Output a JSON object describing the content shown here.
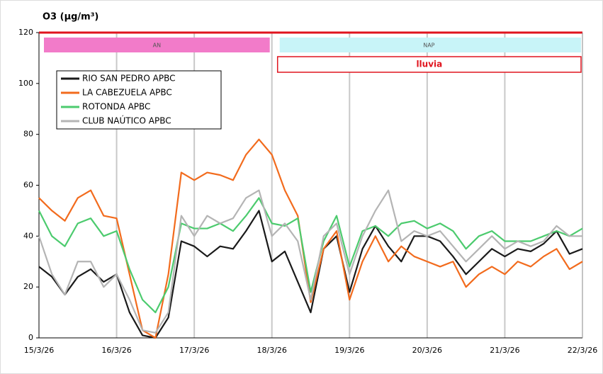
{
  "chart_data": {
    "type": "line",
    "title": "O3 (µg/m³)",
    "categories": [
      "15/3/26",
      null,
      null,
      null,
      null,
      null,
      "16/3/26",
      null,
      null,
      null,
      null,
      null,
      "17/3/26",
      null,
      null,
      null,
      null,
      null,
      "18/3/26",
      null,
      null,
      null,
      null,
      null,
      "19/3/26",
      null,
      null,
      null,
      null,
      null,
      "20/3/26",
      null,
      null,
      null,
      null,
      null,
      "21/3/26",
      null,
      null,
      null,
      null,
      null,
      "22/3/26"
    ],
    "series": [
      {
        "name": "RIO SAN PEDRO APBC",
        "color": "#1a1a1a",
        "values": [
          28,
          24,
          17,
          24,
          27,
          22,
          25,
          10,
          1,
          0,
          8,
          38,
          36,
          32,
          36,
          35,
          42,
          50,
          30,
          34,
          22,
          10,
          35,
          40,
          18,
          35,
          44,
          36,
          30,
          40,
          40,
          38,
          32,
          25,
          30,
          35,
          32,
          35,
          34,
          37,
          42,
          33,
          35
        ]
      },
      {
        "name": "LA CABEZUELA  APBC",
        "color": "#f26b1d",
        "values": [
          55,
          50,
          46,
          55,
          58,
          48,
          47,
          25,
          3,
          0,
          25,
          65,
          62,
          65,
          64,
          62,
          72,
          78,
          72,
          58,
          48,
          14,
          35,
          42,
          15,
          30,
          40,
          30,
          36,
          32,
          30,
          28,
          30,
          20,
          25,
          28,
          25,
          30,
          28,
          32,
          35,
          27,
          30
        ]
      },
      {
        "name": "ROTONDA  APBC",
        "color": "#4ccb6e",
        "values": [
          50,
          40,
          36,
          45,
          47,
          40,
          42,
          27,
          15,
          10,
          20,
          45,
          43,
          43,
          45,
          42,
          48,
          55,
          45,
          44,
          47,
          18,
          38,
          48,
          28,
          42,
          44,
          40,
          45,
          46,
          43,
          45,
          42,
          35,
          40,
          42,
          38,
          38,
          38,
          40,
          42,
          40,
          43
        ]
      },
      {
        "name": "CLUB NAÚTICO  APBC",
        "color": "#b4b4b4",
        "values": [
          40,
          25,
          17,
          30,
          30,
          20,
          25,
          15,
          3,
          2,
          10,
          48,
          40,
          48,
          45,
          47,
          55,
          58,
          40,
          45,
          38,
          15,
          40,
          45,
          25,
          40,
          50,
          58,
          38,
          42,
          40,
          42,
          36,
          30,
          35,
          40,
          35,
          38,
          36,
          38,
          44,
          40,
          40
        ]
      }
    ],
    "ylim": [
      0,
      120
    ],
    "yticks": [
      0,
      20,
      40,
      60,
      80,
      100,
      120
    ],
    "grid": "x",
    "bands": [
      {
        "label": "AN",
        "from": "15/3/26",
        "to": "18/3/26",
        "color": "#f27bc9"
      },
      {
        "label": "NAP",
        "from": "18/3/26",
        "to": "22/3/26",
        "color": "#c8f4f8"
      }
    ],
    "annotation": {
      "label": "lluvia",
      "from": "18/3/26",
      "to": "22/3/26",
      "color": "#e0141e"
    }
  }
}
